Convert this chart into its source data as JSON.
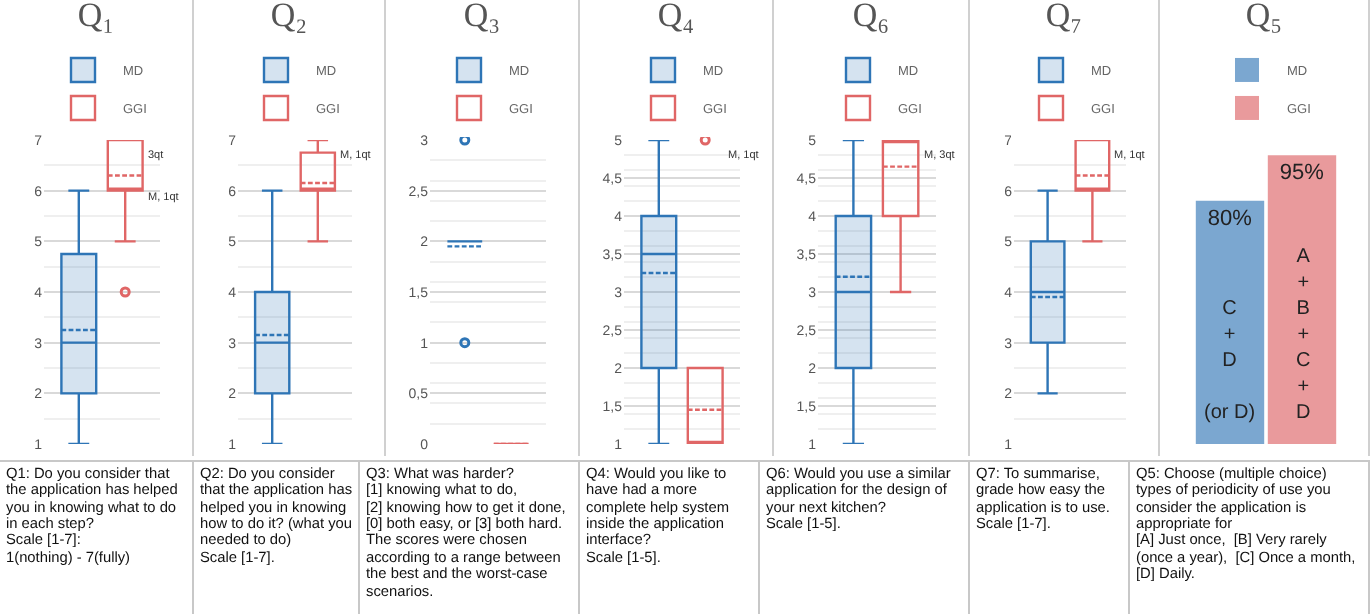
{
  "chart_data": [
    {
      "type": "box",
      "title": "Q₁",
      "categories": [
        null
      ],
      "ylim": [
        1,
        7
      ],
      "yticks": [
        1,
        2,
        3,
        4,
        5,
        6,
        7
      ],
      "grid": "y",
      "legend": "top",
      "tick_labels": "y",
      "series": [
        {
          "name": "MD",
          "color": "#2e75b6",
          "boxes": [
            {
              "low": 1,
              "q1": 2,
              "median": 3,
              "q3": 4.75,
              "high": 6,
              "mean": 3.25
            }
          ]
        },
        {
          "name": "GGI",
          "color": "#e06666",
          "boxes": [
            {
              "low": 5,
              "q1": 6,
              "median": 6,
              "q3": 7,
              "high": 7,
              "mean": 6.3,
              "outliers": [
                4
              ]
            }
          ]
        }
      ],
      "annotations": [
        "3qt",
        "M, 1qt",
        "Q1: Do you consider that the application has helped you in knowing what to do in each step?\nScale [1-7]:\n1(nothing) - 7(fully)"
      ]
    },
    {
      "type": "box",
      "title": "Q₂",
      "categories": [
        null
      ],
      "ylim": [
        1,
        7
      ],
      "yticks": [
        1,
        2,
        3,
        4,
        5,
        6,
        7
      ],
      "grid": "y",
      "legend": "top",
      "tick_labels": "y",
      "series": [
        {
          "name": "MD",
          "color": "#2e75b6",
          "boxes": [
            {
              "low": 1,
              "q1": 2,
              "median": 3,
              "q3": 4,
              "high": 6,
              "mean": 3.15
            }
          ]
        },
        {
          "name": "GGI",
          "color": "#e06666",
          "boxes": [
            {
              "low": 5,
              "q1": 6,
              "median": 6,
              "q3": 6.75,
              "high": 7,
              "mean": 6.15
            }
          ]
        }
      ],
      "annotations": [
        "M, 1qt",
        "Q2: Do you consider that the application has helped you in knowing how to do it? (what you needed to do)\nScale [1-7]."
      ]
    },
    {
      "type": "box",
      "title": "Q₃",
      "categories": [
        null
      ],
      "ylim": [
        0,
        3
      ],
      "yticks": [
        0,
        {
          "value": 0.5,
          "label": "0,5"
        },
        1,
        {
          "value": 1.5,
          "label": "1,5"
        },
        2,
        {
          "value": 2.5,
          "label": "2,5"
        },
        3
      ],
      "grid": "y",
      "legend": "top",
      "tick_labels": "y",
      "series": [
        {
          "name": "MD",
          "color": "#2e75b6",
          "boxes": [
            {
              "low": 2,
              "q1": 2,
              "median": 2,
              "q3": 2,
              "high": 2,
              "mean": 1.95,
              "outliers": [
                3,
                1
              ]
            }
          ]
        },
        {
          "name": "GGI",
          "color": "#e06666",
          "boxes": [
            {
              "low": 0,
              "q1": 0,
              "median": 0,
              "q3": 0,
              "high": 0,
              "mean": 0
            }
          ]
        }
      ],
      "annotations": [
        "Q3: What was harder?\n[1] knowing what to do,\n[2] knowing how to get it done, [0] both easy, or [3] both hard. The scores were chosen according to a range between the best and the worst-case scenarios."
      ]
    },
    {
      "type": "box",
      "title": "Q₄",
      "categories": [
        null
      ],
      "ylim": [
        1,
        5
      ],
      "yticks": [
        1,
        {
          "value": 1.5,
          "label": "1,5"
        },
        2,
        {
          "value": 2.5,
          "label": "2,5"
        },
        3,
        {
          "value": 3.5,
          "label": "3,5"
        },
        4,
        {
          "value": 4.5,
          "label": "4,5"
        },
        5
      ],
      "grid": "y",
      "legend": "top",
      "tick_labels": "y",
      "series": [
        {
          "name": "MD",
          "color": "#2e75b6",
          "boxes": [
            {
              "low": 1,
              "q1": 2,
              "median": 3.5,
              "q3": 4,
              "high": 5,
              "mean": 3.25
            }
          ]
        },
        {
          "name": "GGI",
          "color": "#e06666",
          "boxes": [
            {
              "low": 1,
              "q1": 1,
              "median": 1,
              "q3": 2,
              "high": 2,
              "mean": 1.45,
              "outliers": [
                5
              ]
            }
          ]
        }
      ],
      "annotations": [
        "M, 1qt",
        "Q4: Would you like to have had a more complete help system inside the application interface?\nScale [1-5]."
      ]
    },
    {
      "type": "box",
      "title": "Q₆",
      "categories": [
        null
      ],
      "ylim": [
        1,
        5
      ],
      "yticks": [
        1,
        {
          "value": 1.5,
          "label": "1,5"
        },
        2,
        {
          "value": 2.5,
          "label": "2,5"
        },
        3,
        {
          "value": 3.5,
          "label": "3,5"
        },
        4,
        {
          "value": 4.5,
          "label": "4,5"
        },
        5
      ],
      "grid": "y",
      "legend": "top",
      "tick_labels": "y",
      "series": [
        {
          "name": "MD",
          "color": "#2e75b6",
          "boxes": [
            {
              "low": 1,
              "q1": 2,
              "median": 3,
              "q3": 4,
              "high": 5,
              "mean": 3.2
            }
          ]
        },
        {
          "name": "GGI",
          "color": "#e06666",
          "boxes": [
            {
              "low": 3,
              "q1": 4,
              "median": 5,
              "q3": 5,
              "high": 5,
              "mean": 4.65
            }
          ]
        }
      ],
      "annotations": [
        "M, 3qt",
        "Q6: Would you use a similar application for the design of your next kitchen?\nScale [1-5]."
      ]
    },
    {
      "type": "box",
      "title": "Q₇",
      "categories": [
        null
      ],
      "ylim": [
        1,
        7
      ],
      "yticks": [
        1,
        2,
        3,
        4,
        5,
        6,
        7
      ],
      "grid": "y",
      "legend": "top",
      "tick_labels": "y",
      "series": [
        {
          "name": "MD",
          "color": "#2e75b6",
          "boxes": [
            {
              "low": 2,
              "q1": 3,
              "median": 4,
              "q3": 5,
              "high": 6,
              "mean": 3.9
            }
          ]
        },
        {
          "name": "GGI",
          "color": "#e06666",
          "boxes": [
            {
              "low": 5,
              "q1": 6,
              "median": 6,
              "q3": 7,
              "high": 7,
              "mean": 6.3
            }
          ]
        }
      ],
      "annotations": [
        "M, 1qt",
        "Q7: To summarise, grade how easy the application is to use.\nScale [1-7]."
      ]
    },
    {
      "type": "bar",
      "title": "Q₅",
      "categories": [
        null
      ],
      "legend": "top",
      "tick_labels": false,
      "series": [
        {
          "name": "MD",
          "color": "#7ba7d0",
          "values": [
            80
          ],
          "value_labels": [
            "80%"
          ]
        },
        {
          "name": "GGI",
          "color": "#e99a9c",
          "values": [
            95
          ],
          "value_labels": [
            "95%"
          ]
        }
      ],
      "annotations": [
        "C\n+\nD\n\n(or D)",
        "A\n+\nB\n+\nC\n+\nD",
        "Q5: Choose (multiple choice) types of periodicity of use you consider the application is appropriate for\n[A] Just once,  [B] Very rarely (once a year),  [C] Once a month, [D] Daily."
      ]
    }
  ]
}
